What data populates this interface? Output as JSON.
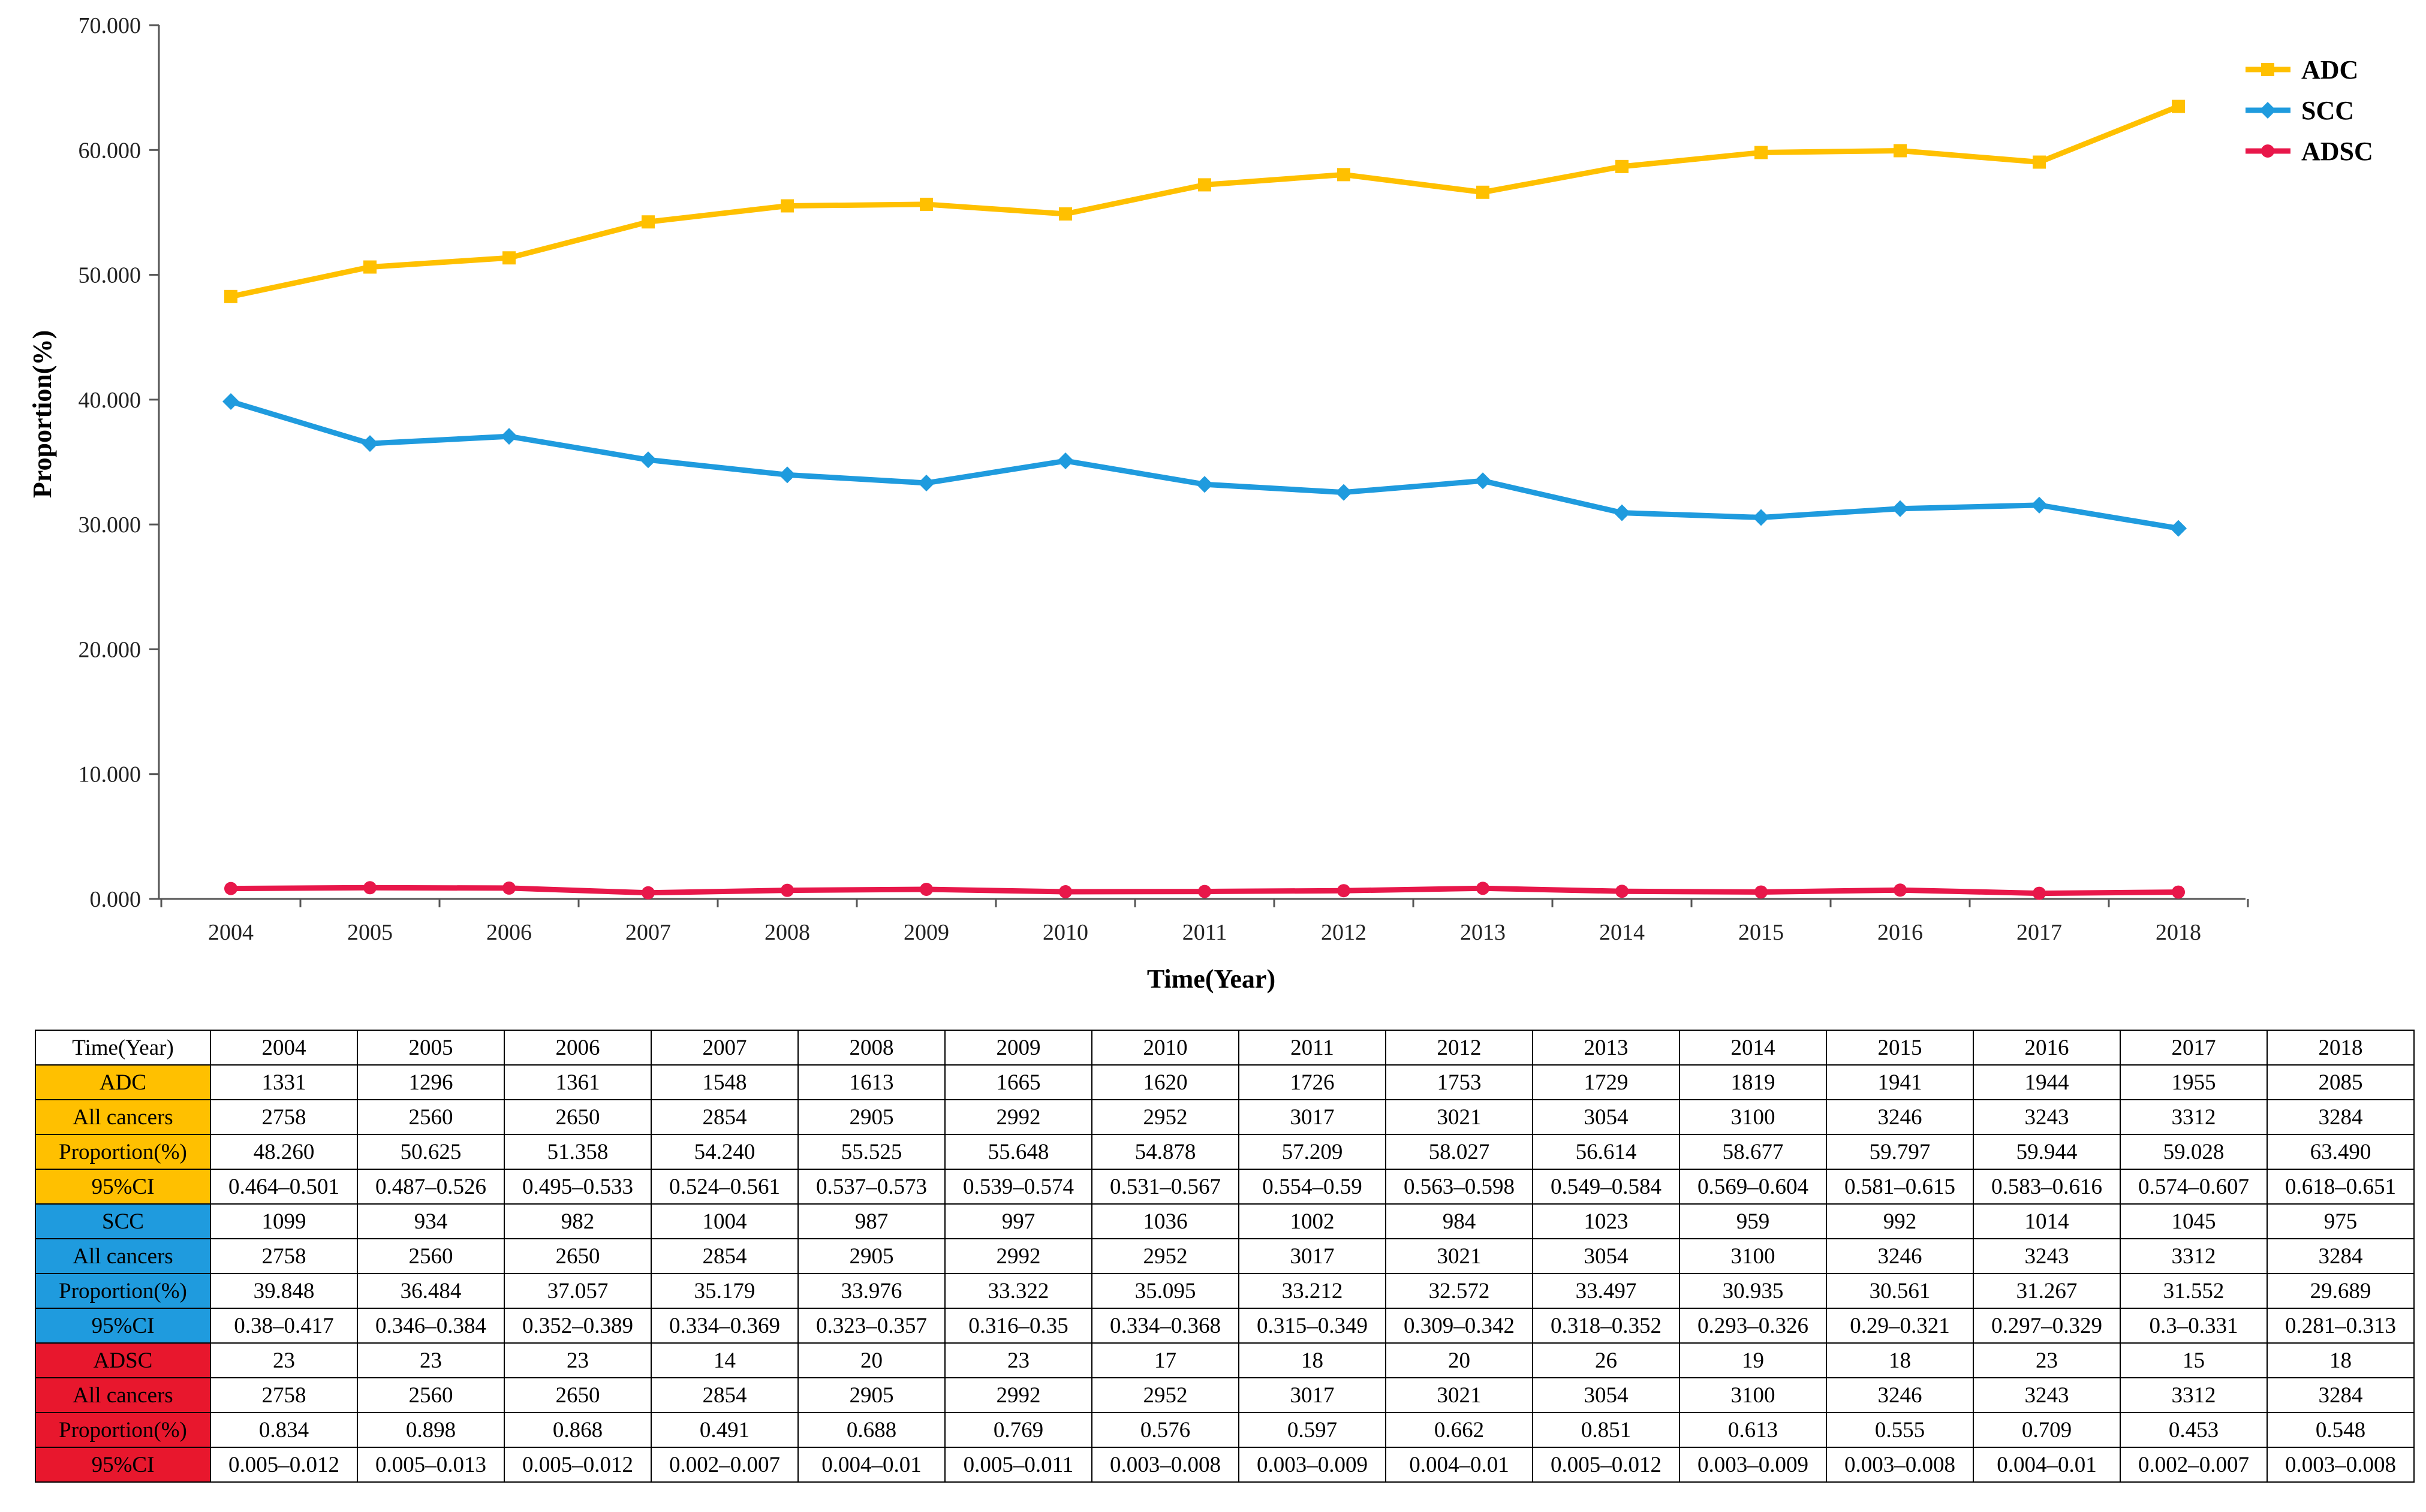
{
  "chart_data": {
    "type": "line",
    "title": "",
    "xlabel": "Time(Year)",
    "ylabel": "Proportion(%)",
    "ylim": [
      0,
      70
    ],
    "yticks": [
      "0.000",
      "10.000",
      "20.000",
      "30.000",
      "40.000",
      "50.000",
      "60.000",
      "70.000"
    ],
    "ytick_values": [
      0,
      10,
      20,
      30,
      40,
      50,
      60,
      70
    ],
    "categories": [
      "2004",
      "2005",
      "2006",
      "2007",
      "2008",
      "2009",
      "2010",
      "2011",
      "2012",
      "2013",
      "2014",
      "2015",
      "2016",
      "2017",
      "2018"
    ],
    "legend_position": "top-right",
    "series": [
      {
        "name": "ADC",
        "color": "#FFC000",
        "marker": "square",
        "values": [
          48.26,
          50.625,
          51.358,
          54.24,
          55.525,
          55.648,
          54.878,
          57.209,
          58.027,
          56.614,
          58.677,
          59.797,
          59.944,
          59.028,
          63.49
        ]
      },
      {
        "name": "SCC",
        "color": "#1F9BDE",
        "marker": "diamond",
        "values": [
          39.848,
          36.484,
          37.057,
          35.179,
          33.976,
          33.322,
          35.095,
          33.212,
          32.572,
          33.497,
          30.935,
          30.561,
          31.267,
          31.552,
          29.689
        ]
      },
      {
        "name": "ADSC",
        "color": "#E8174A",
        "marker": "circle",
        "values": [
          0.834,
          0.898,
          0.868,
          0.491,
          0.688,
          0.769,
          0.576,
          0.597,
          0.662,
          0.851,
          0.613,
          0.555,
          0.709,
          0.453,
          0.548
        ]
      }
    ]
  },
  "table": {
    "header": "Time(Year)",
    "years": [
      "2004",
      "2005",
      "2006",
      "2007",
      "2008",
      "2009",
      "2010",
      "2011",
      "2012",
      "2013",
      "2014",
      "2015",
      "2016",
      "2017",
      "2018"
    ],
    "groups": [
      {
        "color": "#FFC000",
        "rows": [
          {
            "label": "ADC",
            "values": [
              "1331",
              "1296",
              "1361",
              "1548",
              "1613",
              "1665",
              "1620",
              "1726",
              "1753",
              "1729",
              "1819",
              "1941",
              "1944",
              "1955",
              "2085"
            ]
          },
          {
            "label": "All cancers",
            "values": [
              "2758",
              "2560",
              "2650",
              "2854",
              "2905",
              "2992",
              "2952",
              "3017",
              "3021",
              "3054",
              "3100",
              "3246",
              "3243",
              "3312",
              "3284"
            ]
          },
          {
            "label": "Proportion(%)",
            "values": [
              "48.260",
              "50.625",
              "51.358",
              "54.240",
              "55.525",
              "55.648",
              "54.878",
              "57.209",
              "58.027",
              "56.614",
              "58.677",
              "59.797",
              "59.944",
              "59.028",
              "63.490"
            ]
          },
          {
            "label": "95%CI",
            "values": [
              "0.464–0.501",
              "0.487–0.526",
              "0.495–0.533",
              "0.524–0.561",
              "0.537–0.573",
              "0.539–0.574",
              "0.531–0.567",
              "0.554–0.59",
              "0.563–0.598",
              "0.549–0.584",
              "0.569–0.604",
              "0.581–0.615",
              "0.583–0.616",
              "0.574–0.607",
              "0.618–0.651"
            ]
          }
        ]
      },
      {
        "color": "#1F9BDE",
        "rows": [
          {
            "label": "SCC",
            "values": [
              "1099",
              "934",
              "982",
              "1004",
              "987",
              "997",
              "1036",
              "1002",
              "984",
              "1023",
              "959",
              "992",
              "1014",
              "1045",
              "975"
            ]
          },
          {
            "label": "All cancers",
            "values": [
              "2758",
              "2560",
              "2650",
              "2854",
              "2905",
              "2992",
              "2952",
              "3017",
              "3021",
              "3054",
              "3100",
              "3246",
              "3243",
              "3312",
              "3284"
            ]
          },
          {
            "label": "Proportion(%)",
            "values": [
              "39.848",
              "36.484",
              "37.057",
              "35.179",
              "33.976",
              "33.322",
              "35.095",
              "33.212",
              "32.572",
              "33.497",
              "30.935",
              "30.561",
              "31.267",
              "31.552",
              "29.689"
            ]
          },
          {
            "label": "95%CI",
            "values": [
              "0.38–0.417",
              "0.346–0.384",
              "0.352–0.389",
              "0.334–0.369",
              "0.323–0.357",
              "0.316–0.35",
              "0.334–0.368",
              "0.315–0.349",
              "0.309–0.342",
              "0.318–0.352",
              "0.293–0.326",
              "0.29–0.321",
              "0.297–0.329",
              "0.3–0.331",
              "0.281–0.313"
            ]
          }
        ]
      },
      {
        "color": "#E8172D",
        "rows": [
          {
            "label": "ADSC",
            "values": [
              "23",
              "23",
              "23",
              "14",
              "20",
              "23",
              "17",
              "18",
              "20",
              "26",
              "19",
              "18",
              "23",
              "15",
              "18"
            ]
          },
          {
            "label": "All cancers",
            "values": [
              "2758",
              "2560",
              "2650",
              "2854",
              "2905",
              "2992",
              "2952",
              "3017",
              "3021",
              "3054",
              "3100",
              "3246",
              "3243",
              "3312",
              "3284"
            ]
          },
          {
            "label": "Proportion(%)",
            "values": [
              "0.834",
              "0.898",
              "0.868",
              "0.491",
              "0.688",
              "0.769",
              "0.576",
              "0.597",
              "0.662",
              "0.851",
              "0.613",
              "0.555",
              "0.709",
              "0.453",
              "0.548"
            ]
          },
          {
            "label": "95%CI",
            "values": [
              "0.005–0.012",
              "0.005–0.013",
              "0.005–0.012",
              "0.002–0.007",
              "0.004–0.01",
              "0.005–0.011",
              "0.003–0.008",
              "0.003–0.009",
              "0.004–0.01",
              "0.005–0.012",
              "0.003–0.009",
              "0.003–0.008",
              "0.004–0.01",
              "0.002–0.007",
              "0.003–0.008"
            ]
          }
        ]
      }
    ]
  }
}
